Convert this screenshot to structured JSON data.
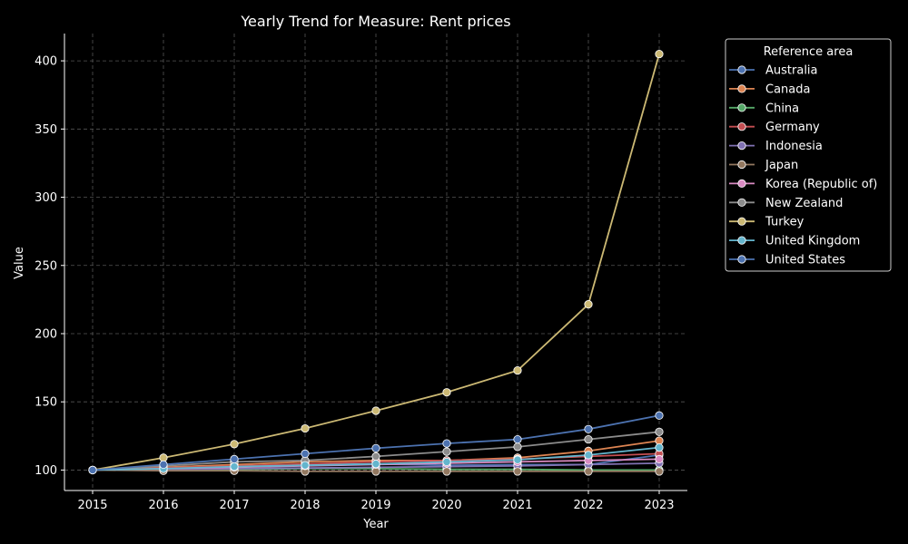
{
  "chart_data": {
    "type": "line",
    "title": "Yearly Trend for Measure: Rent prices",
    "xlabel": "Year",
    "ylabel": "Value",
    "x": [
      2015,
      2016,
      2017,
      2018,
      2019,
      2020,
      2021,
      2022,
      2023
    ],
    "x_ticks": [
      "2015",
      "2016",
      "2017",
      "2018",
      "2019",
      "2020",
      "2021",
      "2022",
      "2023"
    ],
    "y_ticks": [
      "100",
      "150",
      "200",
      "250",
      "300",
      "350",
      "400"
    ],
    "ylim": [
      85,
      420
    ],
    "grid": true,
    "legend": {
      "title": "Reference area",
      "position": "outside-right"
    },
    "series": [
      {
        "name": "Australia",
        "color": "#4c72b0",
        "values": [
          100,
          101.5,
          103,
          104,
          104.5,
          103.5,
          104,
          104,
          111
        ]
      },
      {
        "name": "Canada",
        "color": "#dd8452",
        "values": [
          100,
          102,
          104,
          106,
          107,
          107,
          109,
          114,
          121.5
        ]
      },
      {
        "name": "China",
        "color": "#55a868",
        "values": [
          100,
          100.5,
          100.5,
          101,
          101,
          100.5,
          100.5,
          100,
          100
        ]
      },
      {
        "name": "Germany",
        "color": "#c44e52",
        "values": [
          100,
          101.5,
          103,
          104.5,
          106,
          107,
          108,
          110,
          112
        ]
      },
      {
        "name": "Indonesia",
        "color": "#8172b3",
        "values": [
          100,
          100.5,
          101,
          101.5,
          102,
          102.5,
          103,
          104,
          105
        ]
      },
      {
        "name": "Japan",
        "color": "#937860",
        "values": [
          100,
          99.5,
          99.5,
          99,
          99,
          99,
          99,
          99,
          99
        ]
      },
      {
        "name": "Korea (Republic of)",
        "color": "#da8bc3",
        "values": [
          100,
          101,
          102,
          103,
          104,
          105,
          106,
          107,
          108
        ]
      },
      {
        "name": "New Zealand",
        "color": "#8c8c8c",
        "values": [
          100,
          103,
          106,
          107,
          110,
          113.5,
          117,
          122.5,
          128
        ]
      },
      {
        "name": "Turkey",
        "color": "#ccb974",
        "values": [
          100,
          109,
          119,
          130.5,
          143.5,
          157,
          173,
          221.5,
          405
        ]
      },
      {
        "name": "United Kingdom",
        "color": "#64b5cd",
        "values": [
          100,
          101,
          102.5,
          103.5,
          104.5,
          106,
          107.5,
          111,
          116.5
        ]
      },
      {
        "name": "United States",
        "color": "#4c72b0",
        "values": [
          100,
          104,
          108,
          112,
          116,
          119.5,
          122.5,
          130,
          140
        ]
      }
    ]
  }
}
